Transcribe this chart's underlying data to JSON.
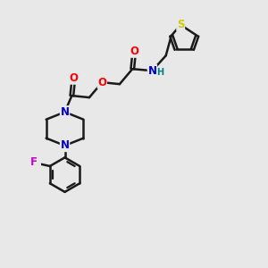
{
  "background_color": "#e8e8e8",
  "bond_color": "#1a1a1a",
  "bond_width": 1.8,
  "atom_colors": {
    "O": "#ff0000",
    "N": "#0000cc",
    "S": "#cccc00",
    "F": "#cc00cc",
    "H": "#008080",
    "C": "#1a1a1a"
  },
  "font_size_atom": 8.5,
  "font_size_h": 7.0
}
